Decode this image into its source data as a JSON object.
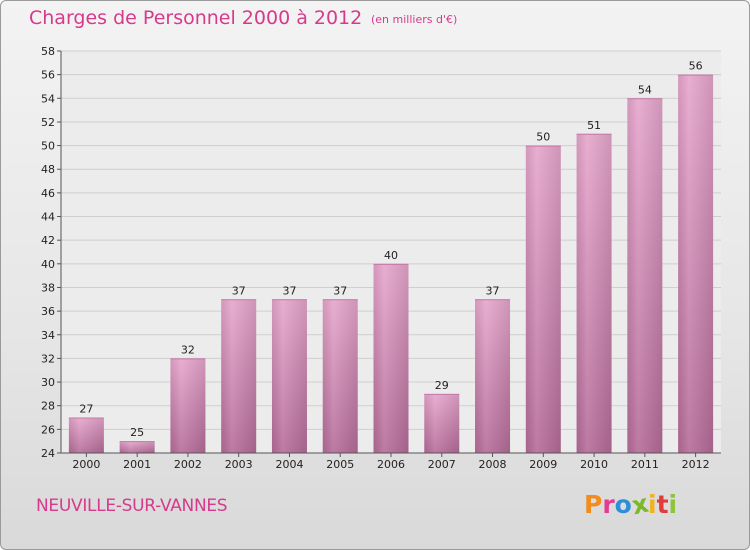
{
  "header": {
    "title": "Charges de Personnel 2000 à 2012",
    "subtitle": "(en milliers d'€)"
  },
  "footer": {
    "commune": "NEUVILLE-SUR-VANNES",
    "logo": "Proxiti",
    "logo_colors": [
      "#f28c1c",
      "#e23b8f",
      "#2e8fd9",
      "#7ab929",
      "#f2b21c",
      "#e23b3b",
      "#8fc43a"
    ]
  },
  "chart_data": {
    "type": "bar",
    "title": "Charges de Personnel 2000 à 2012",
    "subtitle": "(en milliers d'€)",
    "categories": [
      "2000",
      "2001",
      "2002",
      "2003",
      "2004",
      "2005",
      "2006",
      "2007",
      "2008",
      "2009",
      "2010",
      "2011",
      "2012"
    ],
    "values": [
      27,
      25,
      32,
      37,
      37,
      37,
      40,
      29,
      37,
      50,
      51,
      54,
      56
    ],
    "ylim": [
      24,
      58
    ],
    "yticks": [
      24,
      26,
      28,
      30,
      32,
      34,
      36,
      38,
      40,
      42,
      44,
      46,
      48,
      50,
      52,
      54,
      56,
      58
    ],
    "grid": true,
    "bar_color": "#d98fbb",
    "xlabel": "",
    "ylabel": ""
  }
}
